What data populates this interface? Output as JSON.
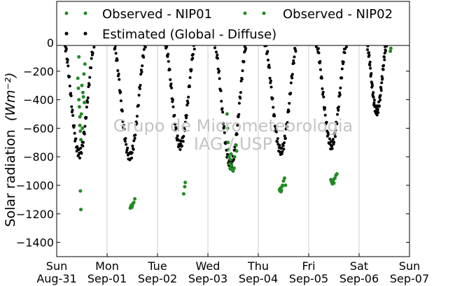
{
  "chart_data": {
    "type": "scatter",
    "title": "",
    "ylabel": "Solar radiation",
    "ylabel_units": "(Wm⁻²)",
    "xlabel": "",
    "ylim": [
      -1500,
      0
    ],
    "xlim": [
      0,
      7
    ],
    "grid": "vertical",
    "legend_position": "top",
    "y_ticks": [
      0,
      -200,
      -400,
      -600,
      -800,
      -1000,
      -1200,
      -1400
    ],
    "x_ticks": [
      {
        "x": 0,
        "line1": "Sun",
        "line2": "Aug-31"
      },
      {
        "x": 1,
        "line1": "Mon",
        "line2": "Sep-01"
      },
      {
        "x": 2,
        "line1": "Tue",
        "line2": "Sep-02"
      },
      {
        "x": 3,
        "line1": "Wed",
        "line2": "Sep-03"
      },
      {
        "x": 4,
        "line1": "Thu",
        "line2": "Sep-04"
      },
      {
        "x": 5,
        "line1": "Fri",
        "line2": "Sep-05"
      },
      {
        "x": 6,
        "line1": "Sat",
        "line2": "Sep-06"
      },
      {
        "x": 7,
        "line1": "Sun",
        "line2": "Sep-07"
      }
    ],
    "watermark": [
      "Grupo de Micrometeorologia",
      "IAG / USP"
    ],
    "series": [
      {
        "name": "Observed - NIP01",
        "color": "#228b22",
        "points": [
          [
            0.42,
            -250
          ],
          [
            0.43,
            -320
          ],
          [
            0.44,
            -400
          ],
          [
            0.45,
            -450
          ],
          [
            0.46,
            -520
          ],
          [
            0.46,
            -580
          ],
          [
            0.47,
            -620
          ],
          [
            0.48,
            -680
          ],
          [
            0.47,
            -1040
          ],
          [
            0.48,
            -1170
          ],
          [
            0.5,
            -300
          ],
          [
            0.52,
            -350
          ],
          [
            0.54,
            -220
          ],
          [
            0.56,
            -150
          ],
          [
            0.44,
            -100
          ],
          [
            0.49,
            -500
          ],
          [
            0.51,
            -600
          ],
          [
            0.53,
            -380
          ],
          [
            0.55,
            -420
          ],
          [
            1.46,
            -1160
          ],
          [
            1.47,
            -1150
          ],
          [
            1.48,
            -1140
          ],
          [
            1.49,
            -1155
          ],
          [
            1.5,
            -1145
          ],
          [
            1.51,
            -1130
          ],
          [
            1.53,
            -1120
          ],
          [
            1.55,
            -1095
          ],
          [
            2.52,
            -1060
          ],
          [
            2.54,
            -1010
          ],
          [
            2.55,
            -980
          ],
          [
            3.38,
            -500
          ],
          [
            3.39,
            -600
          ],
          [
            3.4,
            -700
          ],
          [
            3.41,
            -750
          ],
          [
            3.42,
            -800
          ],
          [
            3.43,
            -850
          ],
          [
            3.44,
            -880
          ],
          [
            3.45,
            -820
          ],
          [
            3.46,
            -780
          ],
          [
            3.47,
            -860
          ],
          [
            3.48,
            -890
          ],
          [
            3.5,
            -900
          ],
          [
            3.52,
            -880
          ],
          [
            3.53,
            -800
          ],
          [
            4.42,
            -1030
          ],
          [
            4.43,
            -1040
          ],
          [
            4.44,
            -1020
          ],
          [
            4.45,
            -1045
          ],
          [
            4.46,
            -1035
          ],
          [
            4.47,
            -1010
          ],
          [
            4.48,
            -1000
          ],
          [
            4.5,
            -970
          ],
          [
            4.52,
            -950
          ],
          [
            5.44,
            -960
          ],
          [
            5.45,
            -970
          ],
          [
            5.46,
            -980
          ],
          [
            5.47,
            -990
          ],
          [
            5.48,
            -975
          ],
          [
            5.49,
            -960
          ],
          [
            5.5,
            -985
          ],
          [
            5.52,
            -950
          ],
          [
            5.54,
            -930
          ]
        ]
      },
      {
        "name": "Observed - NIP02",
        "color": "#228b22",
        "points": [
          [
            6.62,
            -60
          ],
          [
            6.63,
            -40
          ],
          [
            3.56,
            -720
          ],
          [
            3.57,
            -760
          ],
          [
            4.54,
            -1000
          ],
          [
            5.56,
            -920
          ]
        ]
      },
      {
        "name": "Estimated (Global - Diffuse)",
        "color": "#000000",
        "points": []
      }
    ]
  }
}
